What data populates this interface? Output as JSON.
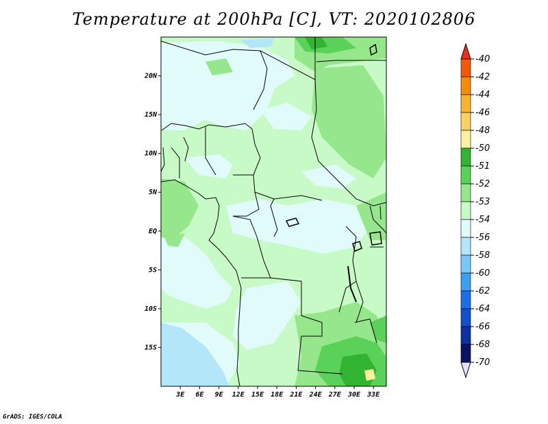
{
  "title": "Temperature at 200hPa [C], VT: 2020102806",
  "credit": "GrADS: IGES/COLA",
  "lat_ticks": [
    {
      "label": "20N",
      "value": 20
    },
    {
      "label": "15N",
      "value": 15
    },
    {
      "label": "10N",
      "value": 10
    },
    {
      "label": "5N",
      "value": 5
    },
    {
      "label": "EQ",
      "value": 0
    },
    {
      "label": "5S",
      "value": -5
    },
    {
      "label": "10S",
      "value": -10
    },
    {
      "label": "15S",
      "value": -15
    }
  ],
  "lon_ticks": [
    {
      "label": "3E",
      "value": 3
    },
    {
      "label": "6E",
      "value": 6
    },
    {
      "label": "9E",
      "value": 9
    },
    {
      "label": "12E",
      "value": 12
    },
    {
      "label": "15E",
      "value": 15
    },
    {
      "label": "18E",
      "value": 18
    },
    {
      "label": "21E",
      "value": 21
    },
    {
      "label": "24E",
      "value": 24
    },
    {
      "label": "27E",
      "value": 27
    },
    {
      "label": "30E",
      "value": 30
    },
    {
      "label": "33E",
      "value": 33
    }
  ],
  "map_extent": {
    "lon_min": 0,
    "lon_max": 35,
    "lat_min": -20,
    "lat_max": 25
  },
  "colorbar": {
    "labels": [
      "-40",
      "-42",
      "-44",
      "-46",
      "-48",
      "-50",
      "-51",
      "-52",
      "-53",
      "-54",
      "-56",
      "-58",
      "-60",
      "-62",
      "-64",
      "-66",
      "-68",
      "-70"
    ],
    "colors": [
      "#e6321e",
      "#f05a0a",
      "#f58c0a",
      "#fab432",
      "#fad264",
      "#fff0a0",
      "#32b432",
      "#5ad25a",
      "#96e68c",
      "#c8fac8",
      "#e1fafa",
      "#b4e6fa",
      "#78c8fa",
      "#3ca0f0",
      "#1e6ee6",
      "#1450c8",
      "#0a32a0",
      "#0a1464",
      "#e1e1fa"
    ]
  },
  "field_colors": {
    "base_light": "#c8fac8",
    "cold_pale": "#e1fafa",
    "mid_green": "#96e68c",
    "green": "#5ad25a",
    "dark_green": "#32b432",
    "warm_yellow": "#fff0a0",
    "cold_blue": "#b4e6fa"
  }
}
